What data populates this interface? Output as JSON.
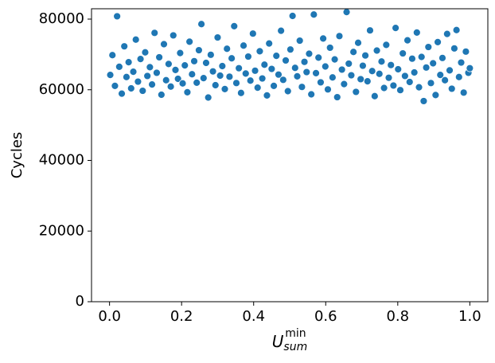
{
  "chart_data": {
    "type": "scatter",
    "xlabel": {
      "base": "U",
      "sub": "sum",
      "sup": "min"
    },
    "ylabel": "Cycles",
    "color": "#1f77b4",
    "grid": false,
    "xlim": [
      -0.05,
      1.05
    ],
    "ylim": [
      0,
      82930
    ],
    "xticks": [
      {
        "value": 0,
        "label": "0.0"
      },
      {
        "value": 0.2,
        "label": "0.2"
      },
      {
        "value": 0.4,
        "label": "0.4"
      },
      {
        "value": 0.6,
        "label": "0.6"
      },
      {
        "value": 0.8,
        "label": "0.8"
      },
      {
        "value": 1,
        "label": "1.0"
      }
    ],
    "yticks": [
      0,
      20000,
      40000,
      60000,
      80000
    ],
    "x": [
      0.002,
      0.008,
      0.015,
      0.021,
      0.027,
      0.034,
      0.041,
      0.047,
      0.053,
      0.06,
      0.066,
      0.073,
      0.079,
      0.086,
      0.092,
      0.099,
      0.105,
      0.112,
      0.118,
      0.125,
      0.131,
      0.138,
      0.144,
      0.151,
      0.157,
      0.164,
      0.17,
      0.177,
      0.183,
      0.19,
      0.196,
      0.203,
      0.209,
      0.216,
      0.222,
      0.229,
      0.235,
      0.242,
      0.248,
      0.255,
      0.261,
      0.268,
      0.274,
      0.281,
      0.287,
      0.294,
      0.3,
      0.307,
      0.313,
      0.32,
      0.326,
      0.333,
      0.339,
      0.346,
      0.352,
      0.359,
      0.365,
      0.372,
      0.378,
      0.385,
      0.391,
      0.398,
      0.404,
      0.411,
      0.417,
      0.424,
      0.43,
      0.437,
      0.443,
      0.45,
      0.456,
      0.463,
      0.469,
      0.476,
      0.482,
      0.489,
      0.495,
      0.502,
      0.508,
      0.515,
      0.521,
      0.528,
      0.534,
      0.541,
      0.547,
      0.554,
      0.56,
      0.567,
      0.573,
      0.58,
      0.586,
      0.593,
      0.599,
      0.606,
      0.612,
      0.619,
      0.625,
      0.632,
      0.638,
      0.645,
      0.651,
      0.658,
      0.664,
      0.671,
      0.677,
      0.684,
      0.69,
      0.697,
      0.703,
      0.71,
      0.716,
      0.723,
      0.729,
      0.736,
      0.742,
      0.749,
      0.755,
      0.762,
      0.768,
      0.775,
      0.781,
      0.788,
      0.794,
      0.801,
      0.807,
      0.814,
      0.82,
      0.827,
      0.833,
      0.84,
      0.846,
      0.853,
      0.859,
      0.866,
      0.872,
      0.879,
      0.885,
      0.892,
      0.898,
      0.905,
      0.911,
      0.918,
      0.924,
      0.931,
      0.937,
      0.944,
      0.95,
      0.957,
      0.963,
      0.97,
      0.976,
      0.983,
      0.989,
      0.996,
      1.0
    ],
    "values": [
      64200,
      69800,
      61100,
      80800,
      66500,
      58900,
      72300,
      63600,
      67800,
      60400,
      65100,
      74200,
      62300,
      68700,
      59700,
      70600,
      63900,
      66400,
      61500,
      76100,
      64800,
      69200,
      58600,
      72900,
      62700,
      67300,
      60900,
      75400,
      65600,
      63100,
      70400,
      61800,
      66900,
      59300,
      73600,
      64400,
      68100,
      62000,
      71200,
      78600,
      63300,
      67600,
      57800,
      69900,
      65200,
      61300,
      74800,
      64000,
      66700,
      60200,
      71600,
      63700,
      68900,
      78000,
      61900,
      66100,
      59100,
      72500,
      64600,
      69400,
      62600,
      75900,
      65400,
      60600,
      70900,
      63200,
      67100,
      58400,
      73100,
      65900,
      61100,
      69600,
      64300,
      76700,
      62800,
      68300,
      59600,
      71400,
      80900,
      66200,
      63800,
      73900,
      60800,
      67900,
      65000,
      70200,
      58700,
      81300,
      64700,
      69100,
      62100,
      74500,
      66600,
      60100,
      71900,
      63500,
      68600,
      57900,
      75200,
      65700,
      61600,
      82000,
      67400,
      64100,
      70700,
      59400,
      73300,
      63000,
      66800,
      69700,
      62400,
      76800,
      65300,
      58200,
      71100,
      64500,
      68000,
      60500,
      72700,
      63400,
      67000,
      61200,
      77500,
      65800,
      59900,
      70300,
      63900,
      74000,
      62200,
      68800,
      64900,
      76200,
      60700,
      69300,
      56800,
      66300,
      72100,
      61900,
      67500,
      58500,
      73500,
      64200,
      69000,
      62700,
      75800,
      65500,
      60300,
      71700,
      76900,
      63600,
      67700,
      59200,
      70800,
      64800,
      66100
    ]
  }
}
